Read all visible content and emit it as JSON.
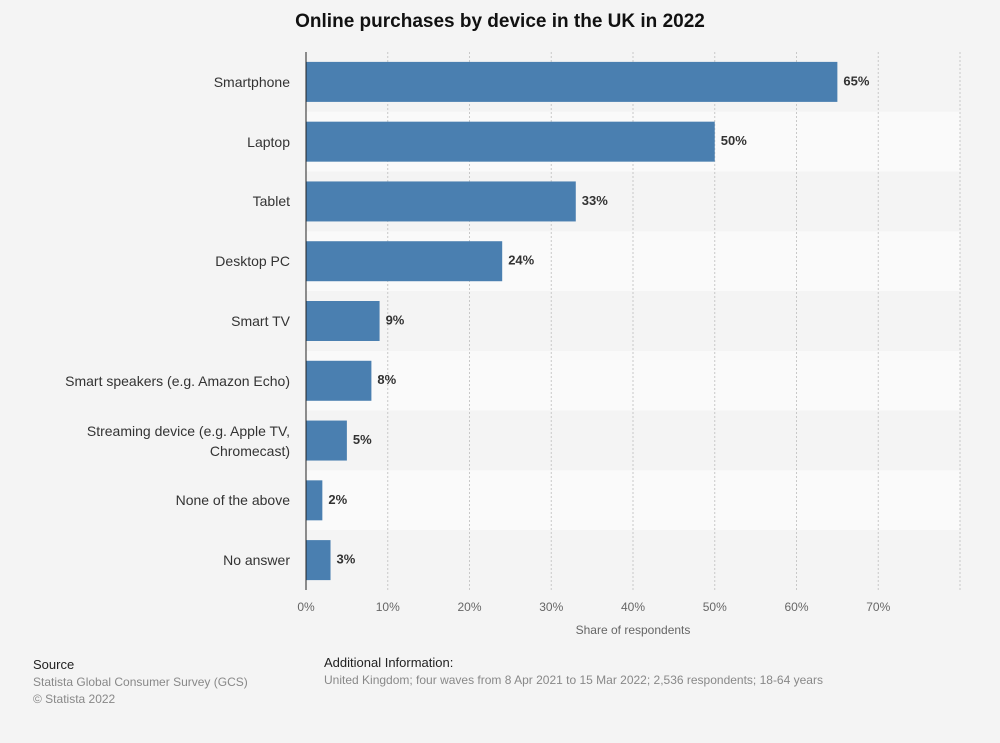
{
  "chart_data": {
    "type": "bar",
    "orientation": "horizontal",
    "title": "Online purchases by device in the UK in 2022",
    "categories": [
      "Smartphone",
      "Laptop",
      "Tablet",
      "Desktop PC",
      "Smart TV",
      "Smart speakers (e.g. Amazon Echo)",
      "Streaming device (e.g. Apple TV, Chromecast)",
      "None of the above",
      "No answer"
    ],
    "values": [
      65,
      50,
      33,
      24,
      9,
      8,
      5,
      2,
      3
    ],
    "value_labels": [
      "65%",
      "50%",
      "33%",
      "24%",
      "9%",
      "8%",
      "5%",
      "2%",
      "3%"
    ],
    "color": "#4a7fb0",
    "xlim": [
      0,
      80
    ],
    "xticks": [
      {
        "value": 0,
        "label": "0%"
      },
      {
        "value": 10,
        "label": "10%"
      },
      {
        "value": 20,
        "label": "20%"
      },
      {
        "value": 30,
        "label": "30%"
      },
      {
        "value": 40,
        "label": "40%"
      },
      {
        "value": 50,
        "label": "50%"
      },
      {
        "value": 60,
        "label": "60%"
      },
      {
        "value": 70,
        "label": "70%"
      }
    ],
    "x_label": "Share of respondents",
    "grid": true
  },
  "footer": {
    "source_heading": "Source",
    "source": "Statista Global Consumer Survey (GCS)",
    "copyright": "© Statista 2022",
    "info_heading": "Additional Information:",
    "info": "United Kingdom; four waves from 8 Apr 2021 to 15 Mar 2022; 2,536 respondents; 18-64 years"
  }
}
